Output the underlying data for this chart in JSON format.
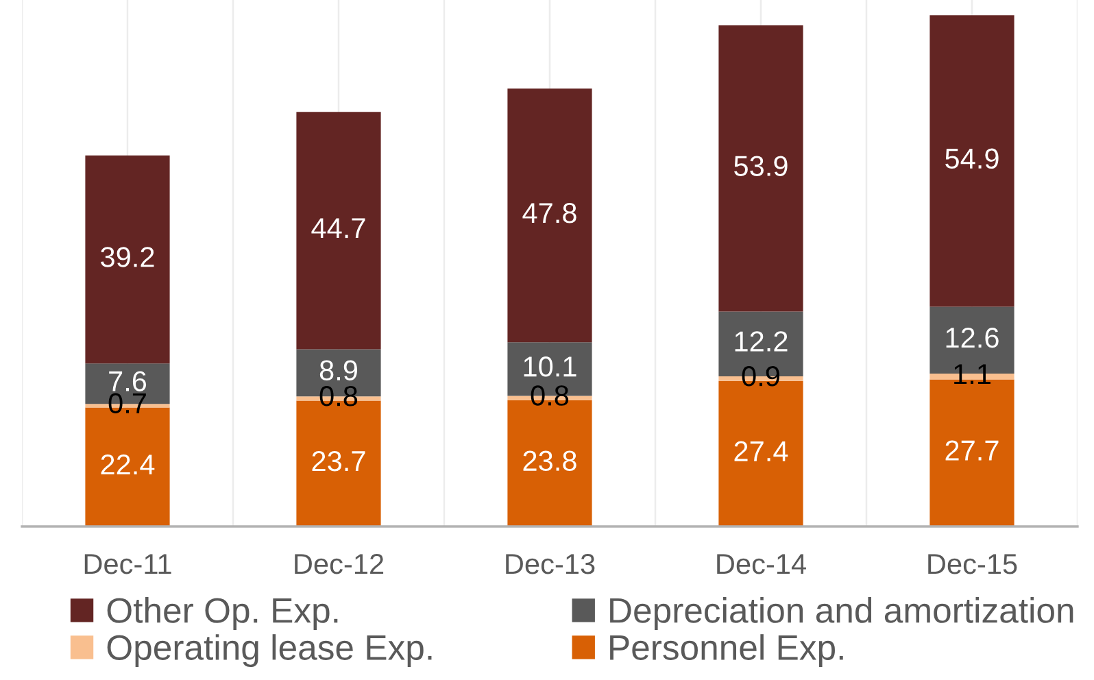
{
  "chart_data": {
    "type": "bar",
    "stacked": true,
    "categories": [
      "Dec-11",
      "Dec-12",
      "Dec-13",
      "Dec-14",
      "Dec-15"
    ],
    "series": [
      {
        "name": "Personnel Exp.",
        "color": "#d86005",
        "values": [
          22.4,
          23.7,
          23.8,
          27.4,
          27.7
        ]
      },
      {
        "name": "Operating lease Exp.",
        "color": "#f9bf8f",
        "values": [
          0.7,
          0.8,
          0.8,
          0.9,
          1.1
        ]
      },
      {
        "name": "Depreciation and amortization",
        "color": "#595959",
        "values": [
          7.6,
          8.9,
          10.1,
          12.2,
          12.6
        ]
      },
      {
        "name": "Other Op. Exp.",
        "color": "#632523",
        "values": [
          39.2,
          44.7,
          47.8,
          53.9,
          54.9
        ]
      }
    ],
    "data_labels": true,
    "legend": "bottom",
    "grid": "x"
  }
}
